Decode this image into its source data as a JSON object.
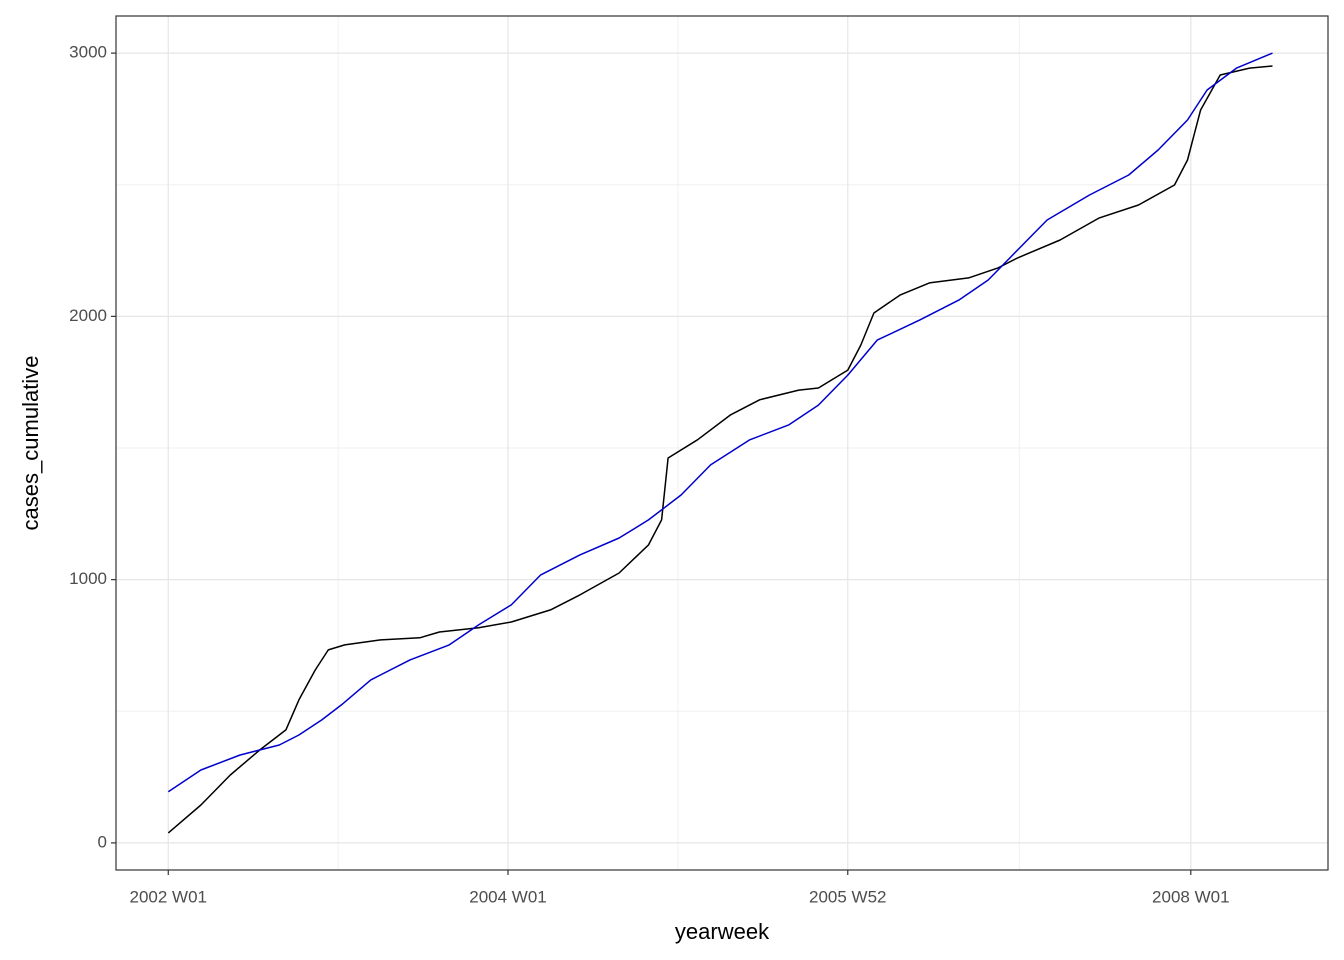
{
  "chart_data": {
    "type": "line",
    "x_label": "yearweek",
    "y_label": "cases_cumulative",
    "xlim": [
      "2001 W37",
      "2008 W43"
    ],
    "xticks": [
      "2002 W01",
      "2004 W01",
      "2005 W52",
      "2008 W01"
    ],
    "ylim": [
      -103,
      3141
    ],
    "yticks": [
      0,
      1000,
      2000,
      3000
    ],
    "grid": true,
    "series": [
      {
        "color": "#000000",
        "x": [
          "2002 W01",
          "2002 W11",
          "2002 W20",
          "2002 W29",
          "2002 W37",
          "2002 W41",
          "2002 W46",
          "2002 W50",
          "2003 W03",
          "2003 W14",
          "2003 W26",
          "2003 W32",
          "2003 W44",
          "2004 W02",
          "2004 W14",
          "2004 W23",
          "2004 W35",
          "2004 W44",
          "2004 W48",
          "2004 W50",
          "2005 W06",
          "2005 W16",
          "2005 W25",
          "2005 W37",
          "2005 W43",
          "2005 W52",
          "2006 W04",
          "2006 W08",
          "2006 W16",
          "2006 W25",
          "2006 W37",
          "2006 W46",
          "2006 W52",
          "2007 W13",
          "2007 W25",
          "2007 W37",
          "2007 W48",
          "2007 W52",
          "2008 W04",
          "2008 W10",
          "2008 W19",
          "2008 W26"
        ],
        "values": [
          38,
          144,
          258,
          353,
          429,
          543,
          657,
          733,
          752,
          771,
          779,
          801,
          817,
          839,
          885,
          942,
          1025,
          1132,
          1227,
          1462,
          1531,
          1625,
          1683,
          1720,
          1728,
          1796,
          1891,
          2013,
          2081,
          2127,
          2146,
          2184,
          2222,
          2290,
          2374,
          2423,
          2499,
          2594,
          2784,
          2917,
          2943,
          2951
        ]
      },
      {
        "color": "#0000cc",
        "x": [
          "2002 W01",
          "2002 W11",
          "2002 W23",
          "2002 W35",
          "2002 W41",
          "2002 W48",
          "2003 W02",
          "2003 W11",
          "2003 W23",
          "2003 W35",
          "2003 W44",
          "2004 W02",
          "2004 W11",
          "2004 W23",
          "2004 W35",
          "2004 W44",
          "2005 W01",
          "2005 W10",
          "2005 W22",
          "2005 W34",
          "2005 W43",
          "2005 W52",
          "2006 W09",
          "2006 W22",
          "2006 W34",
          "2006 W43",
          "2006 W52",
          "2007 W09",
          "2007 W22",
          "2007 W34",
          "2007 W43",
          "2007 W52",
          "2008 W06",
          "2008 W15",
          "2008 W26"
        ],
        "values": [
          194,
          277,
          334,
          372,
          410,
          467,
          524,
          619,
          695,
          752,
          828,
          904,
          1018,
          1094,
          1158,
          1227,
          1322,
          1436,
          1531,
          1588,
          1663,
          1777,
          1910,
          1986,
          2062,
          2138,
          2252,
          2366,
          2461,
          2537,
          2632,
          2746,
          2860,
          2943,
          3000
        ]
      }
    ]
  }
}
